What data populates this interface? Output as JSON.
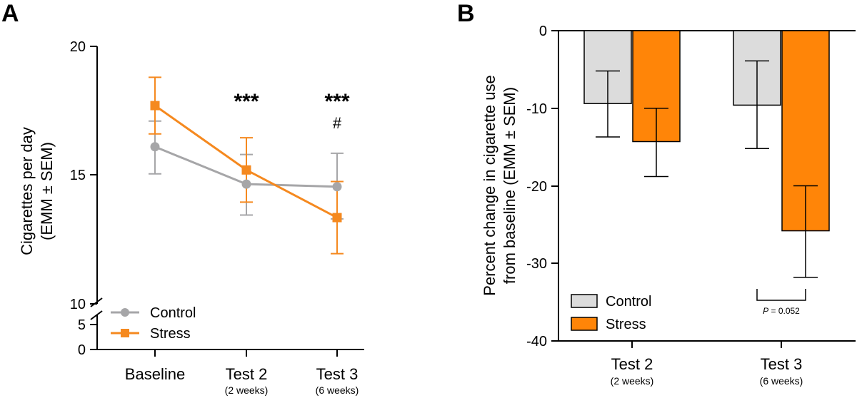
{
  "panels": {
    "a": "A",
    "b": "B"
  },
  "chart_data": [
    {
      "type": "line",
      "panel": "A",
      "categories": [
        "Baseline",
        "Test 2",
        "Test 3"
      ],
      "category_sublabels": [
        "",
        "(2 weeks)",
        "(6 weeks)"
      ],
      "ylabel_line1": "Cigarettes per day",
      "ylabel_line2": "(EMM ± SEM)",
      "yticks": [
        "20",
        "15",
        "10",
        "5",
        "0"
      ],
      "axis_break": "between 0–5 and 10",
      "series": [
        {
          "name": "Control",
          "color": "#a6a6a8",
          "marker": "circle",
          "values": [
            16.1,
            14.65,
            14.55
          ],
          "error_low": [
            15.05,
            13.45,
            13.3
          ],
          "error_high": [
            17.1,
            15.8,
            15.85
          ]
        },
        {
          "name": "Stress",
          "color": "#f5891f",
          "marker": "square",
          "values": [
            17.7,
            15.2,
            13.35
          ],
          "error_low": [
            16.6,
            13.95,
            11.95
          ],
          "error_high": [
            18.8,
            16.45,
            14.75
          ]
        }
      ],
      "annotations": {
        "test2_sig": "***",
        "test3_sig": "***",
        "test3_hash": "#"
      },
      "legend": {
        "items": [
          "Control",
          "Stress"
        ],
        "position": "bottom-left"
      }
    },
    {
      "type": "bar",
      "panel": "B",
      "categories": [
        "Test 2",
        "Test 3"
      ],
      "category_sublabels": [
        "(2 weeks)",
        "(6 weeks)"
      ],
      "ylabel_line1": "Percent change in cigarette use",
      "ylabel_line2": "from baseline (EMM ± SEM)",
      "yticks": [
        "0",
        "-10",
        "-20",
        "-30",
        "-40"
      ],
      "ylim": [
        -40,
        0
      ],
      "series": [
        {
          "name": "Control",
          "color": "#dcdcdc",
          "values": [
            -9.4,
            -9.6
          ],
          "error_low": [
            -13.7,
            -15.2
          ],
          "error_high": [
            -5.2,
            -3.9
          ]
        },
        {
          "name": "Stress",
          "color": "#ff8508",
          "values": [
            -14.3,
            -25.8
          ],
          "error_low": [
            -18.8,
            -31.8
          ],
          "error_high": [
            -10.0,
            -20.0
          ]
        }
      ],
      "annotations": {
        "p_italic": "P",
        "p_value": " = 0.052"
      },
      "legend": {
        "items": [
          "Control",
          "Stress"
        ],
        "position": "bottom-left"
      }
    }
  ]
}
